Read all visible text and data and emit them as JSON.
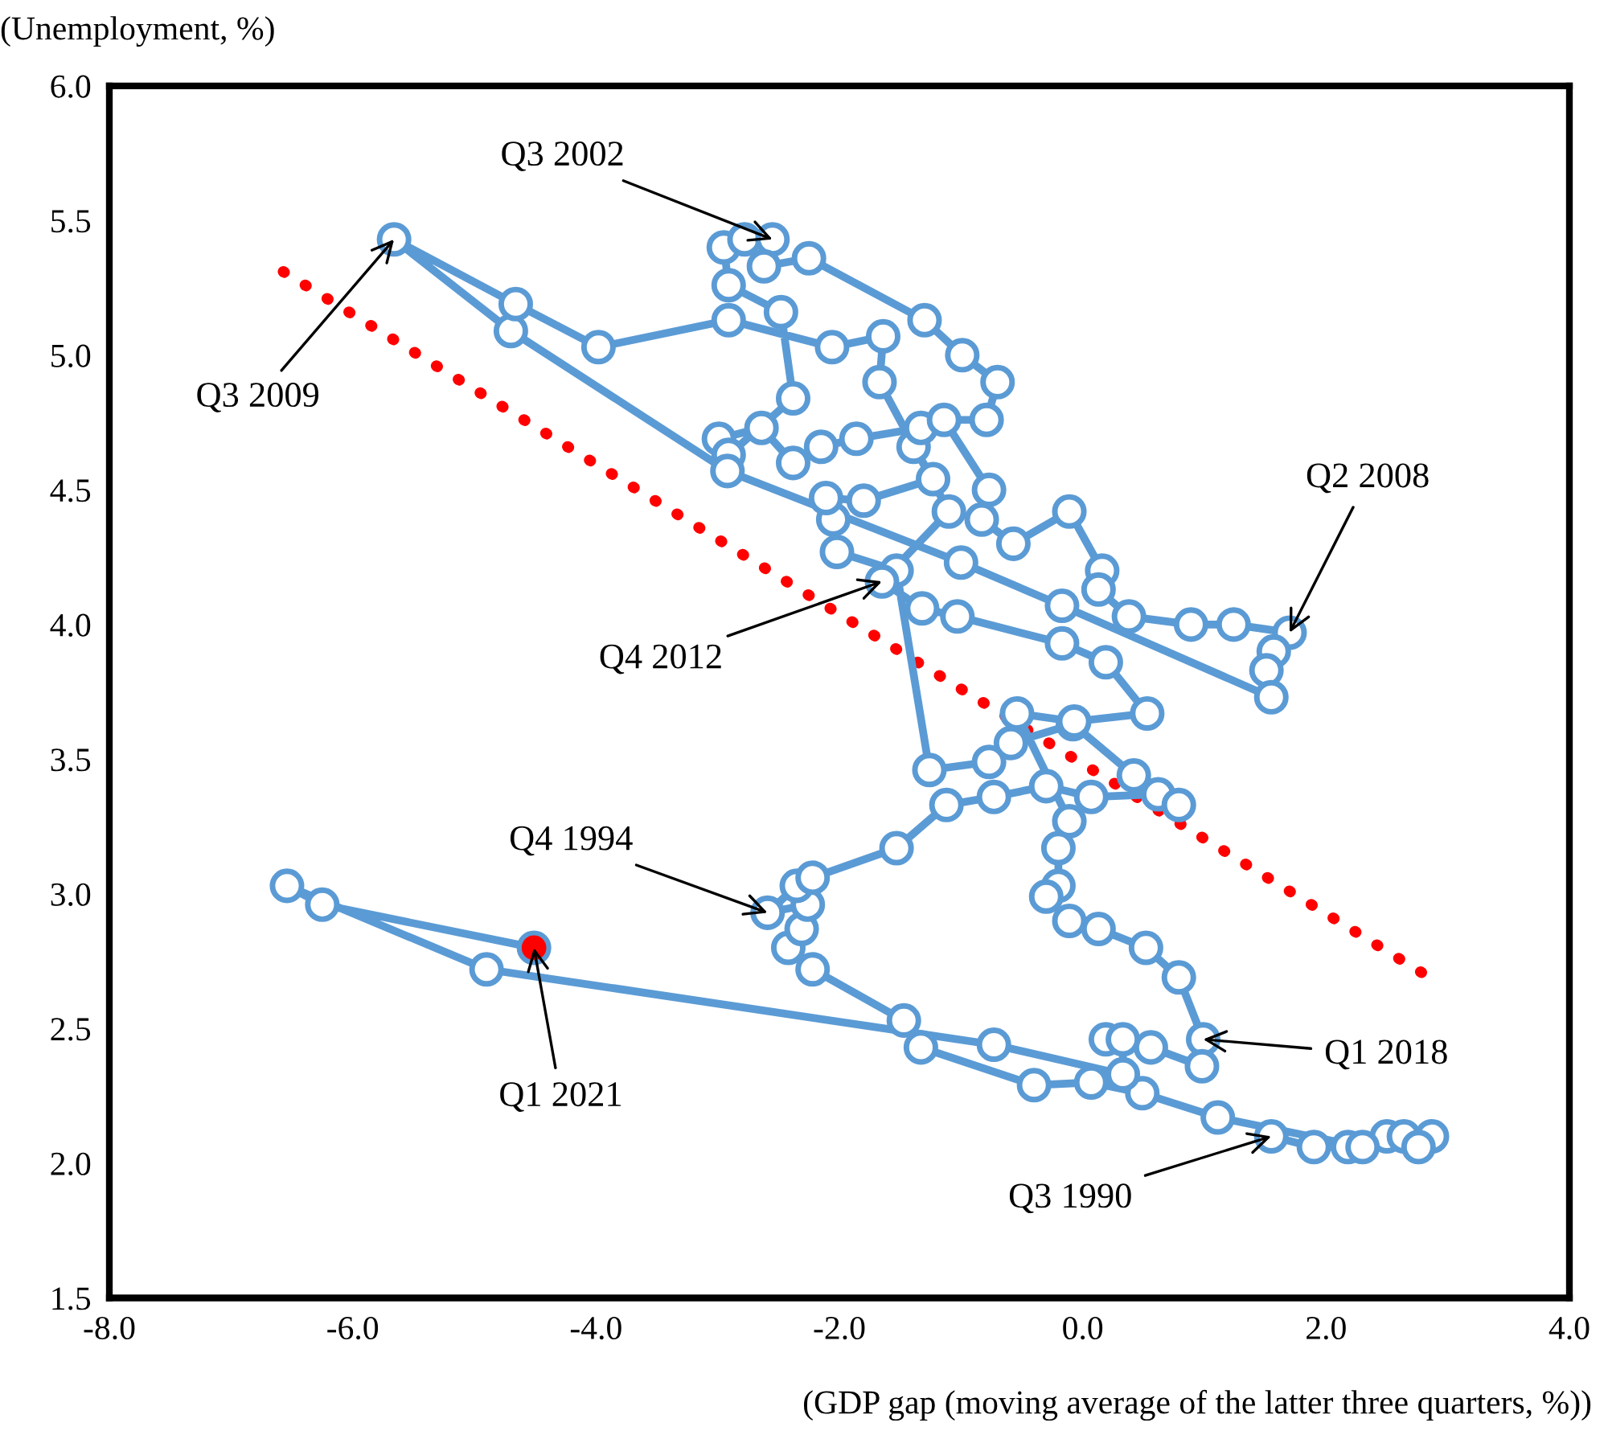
{
  "chart_data": {
    "type": "line",
    "xlabel": "(GDP gap (moving average of the latter three quarters, %))",
    "ylabel": "(Unemployment, %)",
    "xlim": [
      -8,
      4
    ],
    "ylim": [
      1.5,
      6.0
    ],
    "xticks": [
      {
        "value": -8,
        "label": "-8.0"
      },
      {
        "value": -6,
        "label": "-6.0"
      },
      {
        "value": -4,
        "label": "-4.0"
      },
      {
        "value": -2,
        "label": "-2.0"
      },
      {
        "value": 0,
        "label": "0.0"
      },
      {
        "value": 2,
        "label": "2.0"
      },
      {
        "value": 4,
        "label": "4.0"
      }
    ],
    "yticks": [
      {
        "value": 1.5,
        "label": "1.5"
      },
      {
        "value": 2,
        "label": "2.0"
      },
      {
        "value": 2.5,
        "label": "2.5"
      },
      {
        "value": 3,
        "label": "3.0"
      },
      {
        "value": 3.5,
        "label": "3.5"
      },
      {
        "value": 4,
        "label": "4.0"
      },
      {
        "value": 4.5,
        "label": "4.5"
      },
      {
        "value": 5,
        "label": "5.0"
      },
      {
        "value": 5.5,
        "label": "5.5"
      },
      {
        "value": 6,
        "label": "6.0"
      }
    ],
    "grid": false,
    "legend": false,
    "series": [
      {
        "color": "#5b9bd5",
        "marker": "circle",
        "line_style": "solid",
        "x": [
          1.55,
          1.9,
          2.18,
          2.5,
          2.64,
          2.87,
          2.76,
          2.3,
          1.11,
          0.49,
          0.07,
          -0.4,
          -1.33,
          -1.47,
          -2.22,
          -2.42,
          -2.31,
          -2.26,
          -2.59,
          -2.35,
          -2.22,
          -1.53,
          -1.12,
          -0.73,
          -0.3,
          0.07,
          0.62,
          0.79,
          0.42,
          -0.08,
          -0.59,
          -0.77,
          -1.26,
          -1.53,
          -2.02,
          -2.05,
          -2.11,
          -1.8,
          -1.23,
          -1.39,
          -1.33,
          -1.86,
          -2.15,
          -2.38,
          -2.64,
          -2.99,
          -2.91,
          -2.38,
          -2.48,
          -2.91,
          -2.95,
          -2.78,
          -2.55,
          -2.62,
          -2.25,
          -1.3,
          -0.99,
          -0.7,
          -0.79,
          -1.14,
          -0.77,
          -0.83,
          -0.57,
          -0.11,
          0.16,
          0.13,
          0.38,
          0.89,
          1.24,
          1.7,
          1.57,
          1.51,
          1.55,
          -0.17,
          -1.0,
          -2.92,
          -4.7,
          -5.66,
          -4.66,
          -3.98,
          -2.91,
          -2.06,
          -1.64,
          -1.67,
          -1.1,
          -1.65,
          -1.32,
          -1.03,
          -0.17,
          0.19,
          0.53,
          -0.07,
          -0.54,
          -0.11,
          -0.2,
          -0.2,
          -0.3,
          -0.11,
          0.13,
          0.52,
          0.79,
          0.99,
          0.98,
          0.56,
          0.19,
          0.33,
          0.33,
          -0.73,
          -4.9,
          -6.54,
          -6.25,
          -4.51
        ],
        "values": [
          2.1,
          2.06,
          2.06,
          2.1,
          2.1,
          2.1,
          2.06,
          2.06,
          2.17,
          2.26,
          2.3,
          2.29,
          2.43,
          2.53,
          2.72,
          2.8,
          2.87,
          2.96,
          2.93,
          3.03,
          3.06,
          3.17,
          3.33,
          3.36,
          3.4,
          3.36,
          3.37,
          3.33,
          3.44,
          3.63,
          3.56,
          3.49,
          3.46,
          4.2,
          4.27,
          4.39,
          4.47,
          4.46,
          4.54,
          4.66,
          4.73,
          4.69,
          4.66,
          4.6,
          4.73,
          4.69,
          4.63,
          4.84,
          5.16,
          5.26,
          5.4,
          5.43,
          5.43,
          5.33,
          5.36,
          5.13,
          5.0,
          4.9,
          4.76,
          4.76,
          4.5,
          4.39,
          4.3,
          4.42,
          4.2,
          4.13,
          4.03,
          4.0,
          4.0,
          3.97,
          3.9,
          3.83,
          3.73,
          4.07,
          4.23,
          4.57,
          5.09,
          5.43,
          5.19,
          5.03,
          5.13,
          5.03,
          5.07,
          4.9,
          4.42,
          4.16,
          4.06,
          4.03,
          3.93,
          3.86,
          3.67,
          3.64,
          3.67,
          3.27,
          3.17,
          3.03,
          2.99,
          2.9,
          2.87,
          2.8,
          2.69,
          2.46,
          2.36,
          2.43,
          2.46,
          2.46,
          2.33,
          2.44,
          2.72,
          3.03,
          2.96,
          2.8
        ]
      },
      {
        "type": "line",
        "color": "#ff0000",
        "marker": "none",
        "line_style": "dotted",
        "x": [
          -6.57,
          2.85
        ],
        "values": [
          5.31,
          2.69
        ]
      },
      {
        "type": "scatter",
        "color": "#ff0000",
        "marker": "circle",
        "x": [
          -4.51
        ],
        "values": [
          2.8
        ]
      }
    ],
    "annotations": [
      {
        "text": "Q3 2002",
        "x": -2.55,
        "y": 5.43
      },
      {
        "text": "Q3 2009",
        "x": -5.66,
        "y": 5.43
      },
      {
        "text": "Q2 2008",
        "x": 1.7,
        "y": 3.97
      },
      {
        "text": "Q4 2012",
        "x": -1.65,
        "y": 4.16
      },
      {
        "text": "Q4 1994",
        "x": -2.59,
        "y": 2.93
      },
      {
        "text": "Q1 2018",
        "x": 0.99,
        "y": 2.46
      },
      {
        "text": "Q1 2021",
        "x": -4.51,
        "y": 2.8
      },
      {
        "text": "Q3 1990",
        "x": 1.55,
        "y": 2.1
      }
    ]
  }
}
